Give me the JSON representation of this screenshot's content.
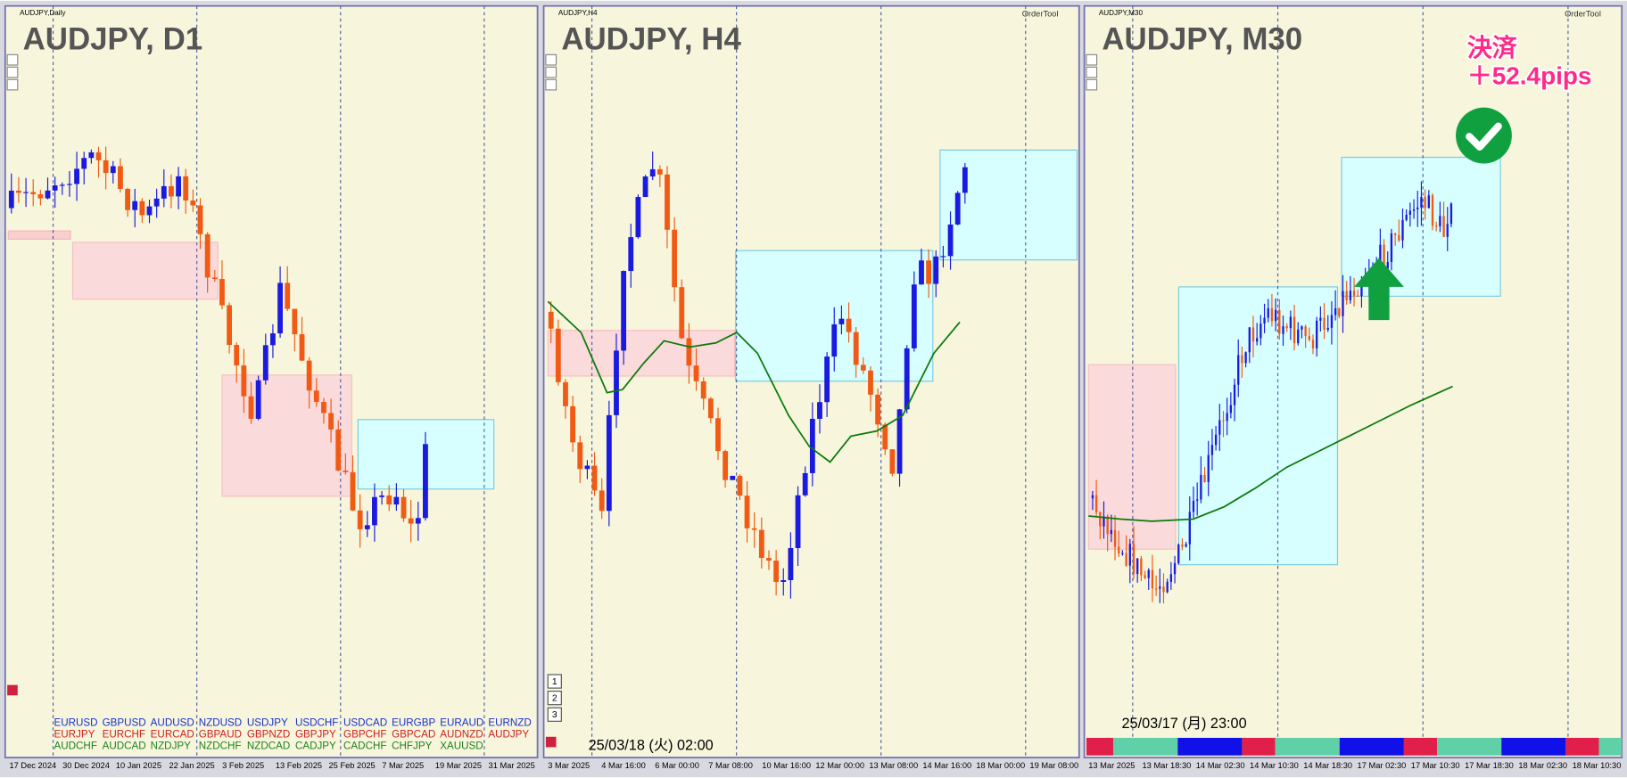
{
  "panels": [
    {
      "small_title": "AUDJPY,Daily",
      "title": "AUDJPY, D1",
      "dates": [
        "17 Dec 2024",
        "30 Dec 2024",
        "10 Jan 2025",
        "22 Jan 2025",
        "3 Feb 2025",
        "13 Feb 2025",
        "25 Feb 2025",
        "7 Mar 2025",
        "19 Mar 2025",
        "31 Mar 2025"
      ],
      "symbols": [
        [
          "EURUSD",
          "GBPUSD",
          "AUDUSD",
          "NZDUSD",
          "USDJPY",
          "USDCHF",
          "USDCAD",
          "EURGBP",
          "EURAUD",
          "EURNZD"
        ],
        [
          "EURJPY",
          "EURCHF",
          "EURCAD",
          "GBPAUD",
          "GBPNZD",
          "GBPJPY",
          "GBPCHF",
          "GBPCAD",
          "AUDNZD",
          "AUDJPY"
        ],
        [
          "AUDCHF",
          "AUDCAD",
          "NZDJPY",
          "NZDCHF",
          "NZDCAD",
          "CADJPY",
          "CADCHF",
          "CHFJPY",
          "XAUUSD"
        ]
      ]
    },
    {
      "small_title": "AUDJPY,H4",
      "tool": "OrderTool",
      "title": "AUDJPY, H4",
      "time": "25/03/18 (火) 02:00",
      "buttons": [
        "1",
        "2",
        "3"
      ],
      "dates": [
        "3 Mar 2025",
        "4 Mar 16:00",
        "6 Mar 00:00",
        "7 Mar 08:00",
        "10 Mar 16:00",
        "12 Mar 00:00",
        "13 Mar 08:00",
        "14 Mar 16:00",
        "18 Mar 00:00",
        "19 Mar 08:00"
      ]
    },
    {
      "small_title": "AUDJPY,M30",
      "tool": "OrderTool",
      "title": "AUDJPY, M30",
      "result_label": "決済",
      "result": "＋52.4pips",
      "time": "25/03/17 (月) 23:00",
      "dates": [
        "13 Mar 2025",
        "13 Mar 18:30",
        "14 Mar 02:30",
        "14 Mar 10:30",
        "14 Mar 18:30",
        "17 Mar 02:30",
        "17 Mar 10:30",
        "17 Mar 18:30",
        "18 Mar 02:30",
        "18 Mar 10:30"
      ]
    }
  ]
}
